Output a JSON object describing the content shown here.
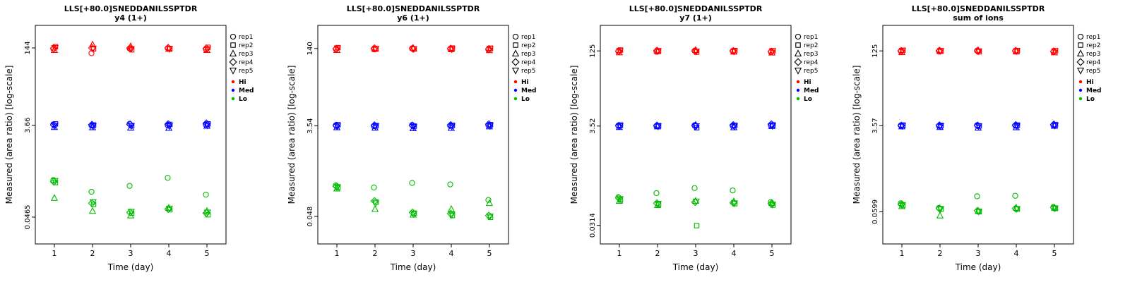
{
  "figure": {
    "background": "#ffffff",
    "marker_color_hi": "#FF0000",
    "marker_color_med": "#0000FF",
    "marker_color_lo": "#00BB00"
  },
  "chart_data": [
    {
      "type": "scatter",
      "title": "LLS[+80.0]SNEDDANILSSPTDR",
      "subtitle": "y4 (1+)",
      "xlabel": "Time (day)",
      "ylabel": "Measured (area ratio) [log-scale]",
      "x_ticks": [
        1,
        2,
        3,
        4,
        5
      ],
      "y_scale": "log",
      "ylim": [
        0.013,
        420
      ],
      "y_ticks": [
        144,
        3.66,
        0.0465
      ],
      "y_tick_labels": [
        "144",
        "3.66",
        "0.0465"
      ],
      "rep_markers": [
        "circle",
        "square",
        "triangle-up",
        "diamond",
        "triangle-down"
      ],
      "legend_reps": [
        "rep1",
        "rep2",
        "rep3",
        "rep4",
        "rep5"
      ],
      "levels": [
        {
          "name": "Hi",
          "color": "#FF0000",
          "values": [
            [
              138,
              152,
              130,
              142,
              144
            ],
            [
              112,
              138,
              168,
              144,
              140
            ],
            [
              140,
              132,
              155,
              143,
              137
            ],
            [
              142,
              140,
              137,
              145,
              138
            ],
            [
              134,
              148,
              130,
              141,
              137
            ]
          ]
        },
        {
          "name": "Med",
          "color": "#0000FF",
          "values": [
            [
              3.8,
              3.9,
              3.35,
              3.7,
              3.6
            ],
            [
              3.6,
              3.7,
              3.3,
              3.75,
              3.5
            ],
            [
              3.9,
              3.6,
              3.25,
              3.8,
              3.55
            ],
            [
              3.65,
              3.8,
              3.2,
              3.85,
              3.5
            ],
            [
              3.75,
              3.9,
              3.55,
              4.0,
              3.65
            ]
          ]
        },
        {
          "name": "Lo",
          "color": "#00BB00",
          "values": [
            [
              0.27,
              0.24,
              0.115,
              0.25,
              0.26
            ],
            [
              0.155,
              0.085,
              0.062,
              0.09,
              0.095
            ],
            [
              0.205,
              0.056,
              0.05,
              0.058,
              0.06
            ],
            [
              0.3,
              0.066,
              0.072,
              0.068,
              0.07
            ],
            [
              0.135,
              0.052,
              0.062,
              0.056,
              0.058
            ]
          ]
        }
      ]
    },
    {
      "type": "scatter",
      "title": "LLS[+80.0]SNEDDANILSSPTDR",
      "subtitle": "y6 (1+)",
      "xlabel": "Time (day)",
      "ylabel": "Measured (area ratio) [log-scale]",
      "x_ticks": [
        1,
        2,
        3,
        4,
        5
      ],
      "y_scale": "log",
      "ylim": [
        0.013,
        420
      ],
      "y_ticks": [
        140,
        3.54,
        0.048
      ],
      "y_tick_labels": [
        "140",
        "3.54",
        "0.048"
      ],
      "rep_markers": [
        "circle",
        "square",
        "triangle-up",
        "diamond",
        "triangle-down"
      ],
      "legend_reps": [
        "rep1",
        "rep2",
        "rep3",
        "rep4",
        "rep5"
      ],
      "levels": [
        {
          "name": "Hi",
          "color": "#FF0000",
          "values": [
            [
              136,
              146,
              130,
              139,
              141
            ],
            [
              134,
              140,
              137,
              142,
              138
            ],
            [
              141,
              136,
              144,
              139,
              137
            ],
            [
              138,
              143,
              134,
              140,
              136
            ],
            [
              133,
              142,
              129,
              137,
              139
            ]
          ]
        },
        {
          "name": "Med",
          "color": "#0000FF",
          "values": [
            [
              3.65,
              3.75,
              3.3,
              3.6,
              3.5
            ],
            [
              3.5,
              3.6,
              3.25,
              3.65,
              3.45
            ],
            [
              3.7,
              3.5,
              3.15,
              3.6,
              3.4
            ],
            [
              3.55,
              3.65,
              3.2,
              3.7,
              3.45
            ],
            [
              3.65,
              3.75,
              3.45,
              3.85,
              3.55
            ]
          ]
        },
        {
          "name": "Lo",
          "color": "#00BB00",
          "values": [
            [
              0.21,
              0.19,
              0.18,
              0.2,
              0.195
            ],
            [
              0.19,
              0.095,
              0.068,
              0.1,
              0.09
            ],
            [
              0.235,
              0.056,
              0.052,
              0.058,
              0.054
            ],
            [
              0.22,
              0.05,
              0.068,
              0.055,
              0.052
            ],
            [
              0.105,
              0.046,
              0.09,
              0.05,
              0.048
            ]
          ]
        }
      ]
    },
    {
      "type": "scatter",
      "title": "LLS[+80.0]SNEDDANILSSPTDR",
      "subtitle": "y7 (1+)",
      "xlabel": "Time (day)",
      "ylabel": "Measured (area ratio) [log-scale]",
      "x_ticks": [
        1,
        2,
        3,
        4,
        5
      ],
      "y_scale": "log",
      "ylim": [
        0.013,
        420
      ],
      "y_ticks": [
        125,
        3.52,
        0.0314
      ],
      "y_tick_labels": [
        "125",
        "3.52",
        "0.0314"
      ],
      "rep_markers": [
        "circle",
        "square",
        "triangle-up",
        "diamond",
        "triangle-down"
      ],
      "legend_reps": [
        "rep1",
        "rep2",
        "rep3",
        "rep4",
        "rep5"
      ],
      "levels": [
        {
          "name": "Hi",
          "color": "#FF0000",
          "values": [
            [
              122,
              130,
              116,
              124,
              126
            ],
            [
              120,
              126,
              123,
              127,
              124
            ],
            [
              126,
              118,
              130,
              124,
              122
            ],
            [
              124,
              127,
              120,
              125,
              123
            ],
            [
              119,
              126,
              115,
              122,
              124
            ]
          ]
        },
        {
          "name": "Med",
          "color": "#0000FF",
          "values": [
            [
              3.6,
              3.7,
              3.35,
              3.55,
              3.5
            ],
            [
              3.5,
              3.58,
              3.45,
              3.62,
              3.48
            ],
            [
              3.65,
              3.25,
              3.7,
              3.55,
              3.5
            ],
            [
              3.55,
              3.65,
              3.3,
              3.7,
              3.45
            ],
            [
              3.6,
              3.72,
              3.5,
              3.85,
              3.55
            ]
          ]
        },
        {
          "name": "Lo",
          "color": "#00BB00",
          "values": [
            [
              0.12,
              0.105,
              0.1,
              0.115,
              0.11
            ],
            [
              0.145,
              0.085,
              0.082,
              0.09,
              0.088
            ],
            [
              0.185,
              0.031,
              0.1,
              0.095,
              0.098
            ],
            [
              0.165,
              0.088,
              0.098,
              0.092,
              0.09
            ],
            [
              0.095,
              0.082,
              0.09,
              0.088,
              0.085
            ]
          ]
        }
      ]
    },
    {
      "type": "scatter",
      "title": "LLS[+80.0]SNEDDANILSSPTDR",
      "subtitle": "sum of ions",
      "xlabel": "Time (day)",
      "ylabel": "Measured (area ratio) [log-scale]",
      "x_ticks": [
        1,
        2,
        3,
        4,
        5
      ],
      "y_scale": "log",
      "ylim": [
        0.013,
        420
      ],
      "y_ticks": [
        125,
        3.57,
        0.0599
      ],
      "y_tick_labels": [
        "125",
        "3.57",
        "0.0599"
      ],
      "rep_markers": [
        "circle",
        "square",
        "triangle-up",
        "diamond",
        "triangle-down"
      ],
      "legend_reps": [
        "rep1",
        "rep2",
        "rep3",
        "rep4",
        "rep5"
      ],
      "levels": [
        {
          "name": "Hi",
          "color": "#FF0000",
          "values": [
            [
              123,
              129,
              117,
              125,
              126
            ],
            [
              121,
              126,
              124,
              127,
              125
            ],
            [
              126,
              120,
              129,
              125,
              123
            ],
            [
              125,
              127,
              121,
              126,
              124
            ],
            [
              120,
              126,
              116,
              123,
              124
            ]
          ]
        },
        {
          "name": "Med",
          "color": "#0000FF",
          "values": [
            [
              3.62,
              3.68,
              3.45,
              3.6,
              3.55
            ],
            [
              3.55,
              3.62,
              3.35,
              3.65,
              3.5
            ],
            [
              3.65,
              3.55,
              3.25,
              3.62,
              3.5
            ],
            [
              3.6,
              3.68,
              3.3,
              3.7,
              3.52
            ],
            [
              3.65,
              3.75,
              3.55,
              3.8,
              3.6
            ]
          ]
        },
        {
          "name": "Lo",
          "color": "#00BB00",
          "values": [
            [
              0.09,
              0.082,
              0.078,
              0.085,
              0.083
            ],
            [
              0.072,
              0.068,
              0.05,
              0.07,
              0.069
            ],
            [
              0.125,
              0.06,
              0.062,
              0.063,
              0.061
            ],
            [
              0.128,
              0.068,
              0.072,
              0.07,
              0.069
            ],
            [
              0.075,
              0.07,
              0.072,
              0.073,
              0.071
            ]
          ]
        }
      ]
    }
  ]
}
